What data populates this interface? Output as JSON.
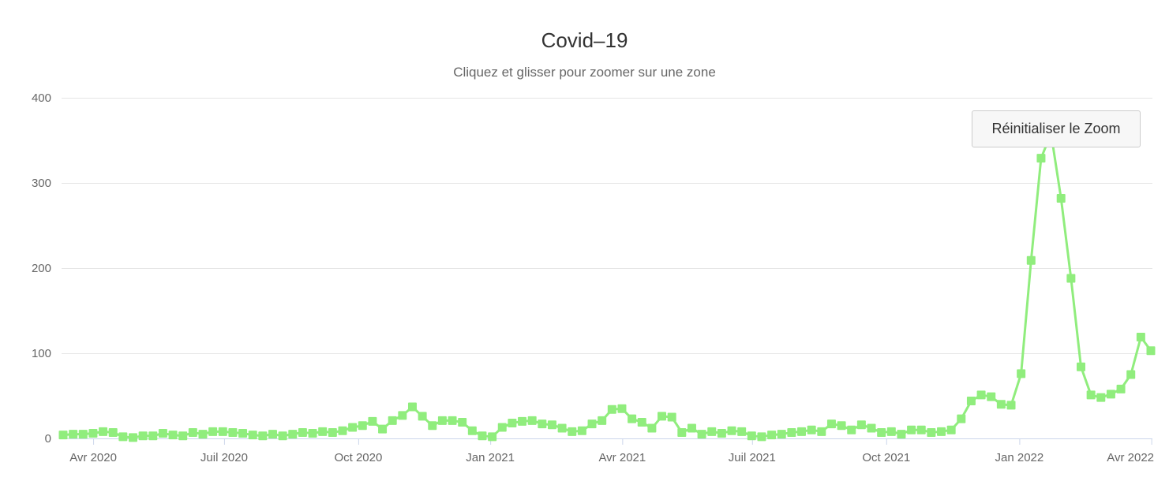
{
  "header": {
    "title": "Covid–19",
    "subtitle": "Cliquez et glisser pour zoomer sur une zone"
  },
  "reset_zoom_button": {
    "label": "Réinitialiser le Zoom"
  },
  "colors": {
    "series": "#90ed7d",
    "grid": "#e6e6e6",
    "axis_line": "#ccd6eb",
    "tick": "#ccd6eb",
    "label": "#666666",
    "title": "#333333",
    "subtitle": "#666666",
    "button_bg": "#f7f7f7",
    "button_border": "#cccccc",
    "button_text": "#333333",
    "background": "#ffffff"
  },
  "chart_data": {
    "type": "line",
    "marker": "square",
    "title": "Covid–19",
    "subtitle": "Cliquez et glisser pour zoomer sur une zone",
    "legend": "none",
    "grid": "on",
    "ylim": [
      0,
      400
    ],
    "yticks": [
      0,
      100,
      200,
      300,
      400
    ],
    "xticks": [
      {
        "label": "Avr 2020",
        "pos": 0.029
      },
      {
        "label": "Juil 2020",
        "pos": 0.149
      },
      {
        "label": "Oct 2020",
        "pos": 0.272
      },
      {
        "label": "Jan 2021",
        "pos": 0.393
      },
      {
        "label": "Avr 2021",
        "pos": 0.514
      },
      {
        "label": "Juil 2021",
        "pos": 0.633
      },
      {
        "label": "Oct 2021",
        "pos": 0.756
      },
      {
        "label": "Jan 2022",
        "pos": 0.878
      },
      {
        "label": "Avr 2022",
        "pos": 0.999
      }
    ],
    "x_interval": "weekly, mars 2020 - avril 2022",
    "values": [
      4,
      5,
      5,
      6,
      8,
      7,
      2,
      1,
      3,
      3,
      6,
      4,
      3,
      7,
      5,
      8,
      8,
      7,
      6,
      4,
      3,
      5,
      3,
      5,
      7,
      6,
      8,
      7,
      9,
      13,
      15,
      20,
      11,
      21,
      27,
      37,
      26,
      15,
      21,
      21,
      19,
      9,
      3,
      2,
      13,
      18,
      20,
      21,
      17,
      16,
      12,
      8,
      9,
      17,
      21,
      34,
      35,
      23,
      19,
      12,
      26,
      25,
      7,
      12,
      5,
      8,
      6,
      9,
      8,
      3,
      2,
      4,
      5,
      7,
      8,
      10,
      8,
      17,
      15,
      10,
      16,
      12,
      7,
      8,
      5,
      10,
      10,
      7,
      8,
      10,
      23,
      44,
      51,
      49,
      40,
      39,
      76,
      209,
      329,
      358,
      282,
      188,
      84,
      51,
      48,
      52,
      58,
      75,
      119,
      103
    ]
  }
}
